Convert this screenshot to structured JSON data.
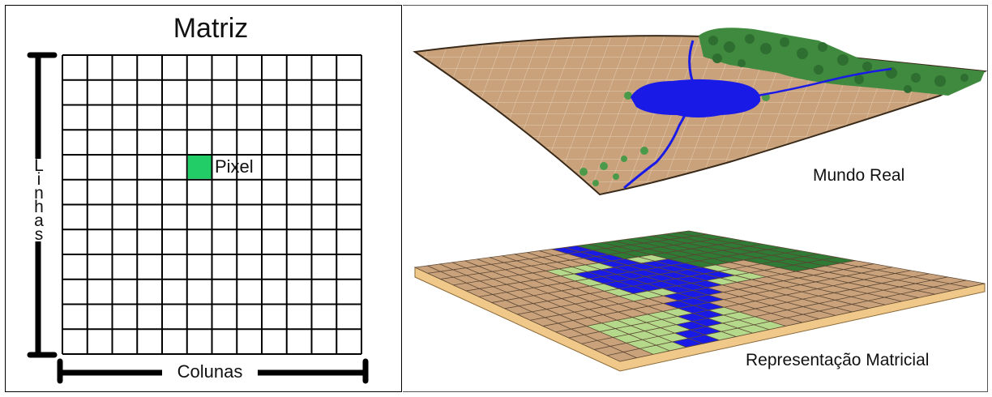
{
  "matrix": {
    "title": "Matriz",
    "rows_label": "Linhas",
    "cols_label": "Colunas",
    "pixel_label": "Pixel",
    "grid_rows": 12,
    "grid_cols": 12,
    "highlight_cell": {
      "row": 4,
      "col": 5
    },
    "highlight_color": "#22cc66"
  },
  "real_world": {
    "label": "Mundo Real"
  },
  "raster": {
    "label": "Representação Matricial"
  },
  "colors": {
    "terrain": "#c9a27c",
    "water": "#1a1ae6",
    "forest": "#2f7a35",
    "light_vegetation": "#b5d98a",
    "slab_edge": "#f0c98a"
  }
}
